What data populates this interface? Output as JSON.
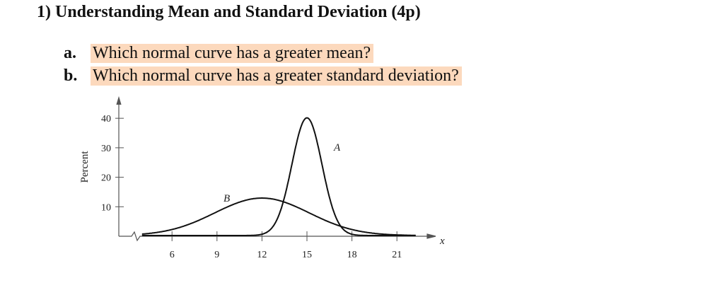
{
  "title": "1)  Understanding Mean and Standard Deviation (4p)",
  "questions": [
    {
      "label": "a.",
      "text": "Which normal curve has a greater mean?"
    },
    {
      "label": "b.",
      "text": "Which normal curve has a greater standard deviation?"
    }
  ],
  "highlight_color": "#fcd9bd",
  "chart_data": {
    "type": "line",
    "title": "",
    "xlabel": "x",
    "ylabel": "Percent",
    "xlim": [
      4,
      22.5
    ],
    "ylim": [
      0,
      40
    ],
    "x_ticks": [
      "6",
      "9",
      "12",
      "15",
      "18",
      "21"
    ],
    "y_ticks": [
      "10",
      "20",
      "30",
      "40"
    ],
    "grid": false,
    "series": [
      {
        "name": "A",
        "distribution": "normal",
        "mean": 15,
        "std": 1,
        "peak": 39.9
      },
      {
        "name": "B",
        "distribution": "normal",
        "mean": 12,
        "std": 3.14,
        "peak": 12.7
      }
    ]
  }
}
